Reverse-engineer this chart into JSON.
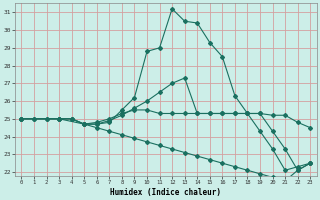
{
  "xlabel": "Humidex (Indice chaleur)",
  "bg_color": "#cceee8",
  "line_color": "#1a7060",
  "grid_color": "#d4a0a0",
  "xlim": [
    -0.5,
    23.5
  ],
  "ylim": [
    21.8,
    31.5
  ],
  "xticks": [
    0,
    1,
    2,
    3,
    4,
    5,
    6,
    7,
    8,
    9,
    10,
    11,
    12,
    13,
    14,
    15,
    16,
    17,
    18,
    19,
    20,
    21,
    22,
    23
  ],
  "yticks": [
    22,
    23,
    24,
    25,
    26,
    27,
    28,
    29,
    30,
    31
  ],
  "lines": [
    {
      "x": [
        0,
        1,
        2,
        3,
        4,
        5,
        6,
        7,
        8,
        9,
        10,
        11,
        12,
        13,
        14,
        15,
        16,
        17,
        18,
        19,
        20,
        21,
        22,
        23
      ],
      "y": [
        25,
        25,
        25,
        25,
        25,
        24.7,
        24.7,
        24.8,
        25.5,
        26.2,
        28.8,
        29.0,
        31.2,
        30.5,
        30.4,
        29.3,
        28.5,
        26.3,
        25.3,
        24.3,
        23.3,
        22.1,
        22.3,
        22.5
      ]
    },
    {
      "x": [
        0,
        1,
        2,
        3,
        4,
        5,
        6,
        7,
        8,
        9,
        10,
        11,
        12,
        13,
        14,
        15,
        16,
        17,
        18,
        19,
        20,
        21,
        22,
        23
      ],
      "y": [
        25,
        25,
        25,
        25,
        25,
        24.7,
        24.8,
        25,
        25.3,
        25.5,
        25.5,
        25.3,
        25.3,
        25.3,
        25.3,
        25.3,
        25.3,
        25.3,
        25.3,
        25.3,
        25.2,
        25.2,
        24.8,
        24.5
      ]
    },
    {
      "x": [
        0,
        3,
        5,
        6,
        7,
        8,
        9,
        10,
        11,
        12,
        13,
        14,
        15,
        16,
        17,
        18,
        19,
        20,
        21,
        22,
        23
      ],
      "y": [
        25,
        25,
        24.7,
        24.5,
        24.3,
        24.1,
        23.9,
        23.7,
        23.5,
        23.3,
        23.1,
        22.9,
        22.7,
        22.5,
        22.3,
        22.1,
        21.9,
        21.7,
        21.5,
        22.1,
        22.5
      ]
    },
    {
      "x": [
        0,
        3,
        4,
        5,
        6,
        7,
        8,
        9,
        10,
        11,
        12,
        13,
        14,
        15,
        16,
        17,
        18,
        19,
        20,
        21,
        22,
        23
      ],
      "y": [
        25,
        25,
        25,
        24.7,
        24.7,
        24.9,
        25.2,
        25.6,
        26.0,
        26.5,
        27.0,
        27.3,
        25.3,
        25.3,
        25.3,
        25.3,
        25.3,
        25.3,
        24.3,
        23.3,
        22.1,
        22.5
      ]
    }
  ]
}
